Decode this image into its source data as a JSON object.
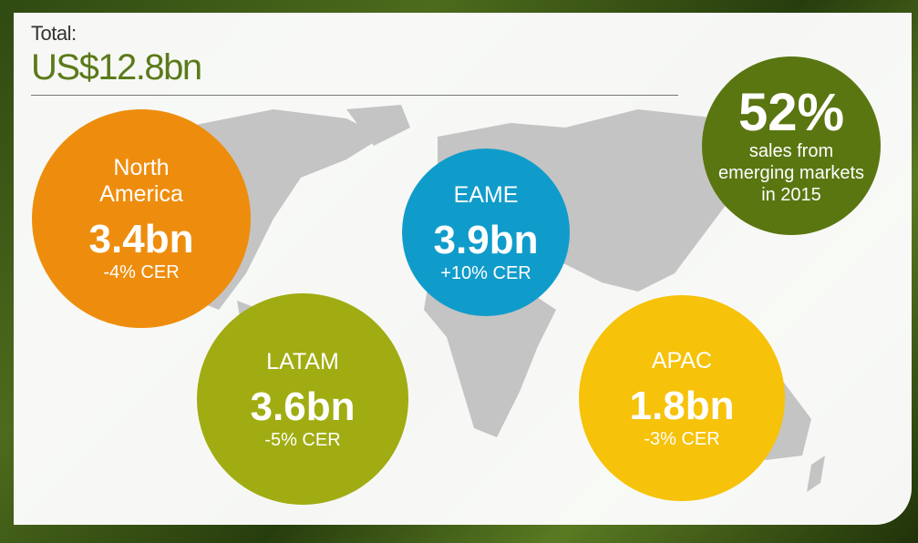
{
  "header": {
    "label": "Total:",
    "value": "US$12.8bn"
  },
  "regions": [
    {
      "name": "North America",
      "value": "3.4bn",
      "change": "-4% CER"
    },
    {
      "name": "EAME",
      "value": "3.9bn",
      "change": "+10% CER"
    },
    {
      "name": "LATAM",
      "value": "3.6bn",
      "change": "-5% CER"
    },
    {
      "name": "APAC",
      "value": "1.8bn",
      "change": "-3% CER"
    }
  ],
  "highlight": {
    "value": "52%",
    "lines": [
      "sales from",
      "emerging markets",
      "in 2015"
    ]
  }
}
